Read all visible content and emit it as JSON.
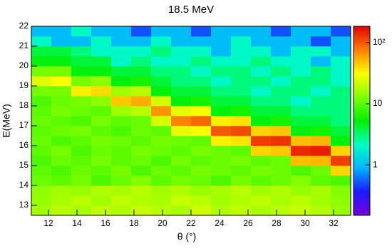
{
  "chart_data": {
    "type": "heatmap",
    "title": "18.5 MeV",
    "x_label": "θ (°)",
    "y_label": "E(MeV)",
    "x_bins": [
      10.8,
      12.2,
      13.6,
      15.0,
      16.4,
      17.8,
      19.2,
      20.6,
      22.0,
      23.4,
      24.8,
      26.2,
      27.6,
      29.0,
      30.4,
      31.8,
      33.2
    ],
    "y_bins": [
      12.5,
      13.0,
      13.5,
      14.0,
      14.5,
      15.0,
      15.5,
      16.0,
      16.5,
      17.0,
      17.5,
      18.0,
      18.5,
      19.0,
      19.5,
      20.0,
      20.5,
      21.0,
      21.5,
      22.0
    ],
    "z": [
      [
        16,
        19,
        17,
        20,
        18,
        21,
        19,
        17,
        22,
        18,
        20,
        17,
        19,
        21,
        18,
        15
      ],
      [
        15,
        17,
        19,
        16,
        20,
        18,
        17,
        21,
        19,
        16,
        18,
        20,
        17,
        19,
        16,
        14
      ],
      [
        14,
        16,
        15,
        18,
        17,
        19,
        16,
        18,
        15,
        17,
        19,
        16,
        18,
        15,
        17,
        13
      ],
      [
        11,
        10,
        12,
        9,
        11,
        13,
        10,
        12,
        11,
        9,
        12,
        10,
        11,
        13,
        10,
        9
      ],
      [
        10,
        9,
        11,
        10,
        12,
        9,
        11,
        10,
        12,
        11,
        10,
        12,
        11,
        9,
        11,
        42
      ],
      [
        9,
        11,
        10,
        12,
        10,
        11,
        9,
        12,
        10,
        11,
        12,
        10,
        11,
        49,
        52,
        120
      ],
      [
        10,
        12,
        9,
        11,
        10,
        12,
        11,
        10,
        12,
        11,
        10,
        42,
        46,
        140,
        150,
        42
      ],
      [
        11,
        9,
        10,
        12,
        11,
        10,
        12,
        11,
        10,
        35,
        38,
        120,
        130,
        49,
        52,
        5
      ],
      [
        10,
        11,
        12,
        10,
        9,
        11,
        10,
        26,
        32,
        100,
        110,
        42,
        46,
        5,
        6,
        4
      ],
      [
        11,
        10,
        9,
        12,
        10,
        11,
        23,
        75,
        90,
        35,
        38,
        5,
        6,
        4,
        4,
        3
      ],
      [
        10,
        12,
        11,
        10,
        16,
        19,
        65,
        26,
        32,
        5,
        6,
        4,
        4,
        3,
        3,
        3
      ],
      [
        9,
        11,
        12,
        14,
        45,
        55,
        23,
        5,
        6,
        4,
        4,
        3,
        3,
        2,
        3,
        3
      ],
      [
        12,
        12,
        35,
        40,
        16,
        19,
        5,
        4,
        4,
        3,
        3,
        2,
        3,
        3,
        2,
        3
      ],
      [
        25,
        30,
        12,
        14,
        5,
        6,
        4,
        3,
        3,
        2,
        3,
        3,
        2,
        3,
        3,
        2
      ],
      [
        12,
        12,
        5,
        5,
        4,
        4,
        3,
        3,
        2,
        3,
        3,
        2,
        3,
        2,
        3,
        2
      ],
      [
        5,
        5,
        4,
        4,
        2,
        3,
        2,
        2,
        3,
        2,
        2,
        3,
        2,
        2,
        1,
        2
      ],
      [
        4,
        4,
        3,
        2,
        2,
        2,
        3,
        2,
        2,
        1,
        2,
        2,
        1,
        2,
        2,
        1
      ],
      [
        2,
        1,
        1,
        2,
        1,
        1,
        2,
        1,
        1,
        1,
        2,
        1,
        1,
        1,
        0.5,
        1
      ],
      [
        1,
        1,
        2,
        1,
        1,
        0.5,
        1,
        1,
        0.5,
        1,
        1,
        1,
        0.5,
        1,
        1,
        0.5
      ]
    ],
    "xlim": [
      10.8,
      33.2
    ],
    "ylim": [
      12.5,
      22
    ],
    "xticks": [
      12,
      14,
      16,
      18,
      20,
      22,
      24,
      26,
      28,
      30,
      32
    ],
    "yticks": [
      13,
      14,
      15,
      16,
      17,
      18,
      19,
      20,
      21,
      22
    ],
    "zlim": [
      0.15,
      185
    ],
    "zlog": true,
    "zticks": [
      1,
      10,
      {
        "value": 100,
        "label": "10²"
      }
    ],
    "palette": [
      "#7a00d9",
      "#1a1aff",
      "#00b3ff",
      "#00ffc0",
      "#00f000",
      "#80ff00",
      "#ffff00",
      "#ff8000",
      "#e00000"
    ]
  }
}
